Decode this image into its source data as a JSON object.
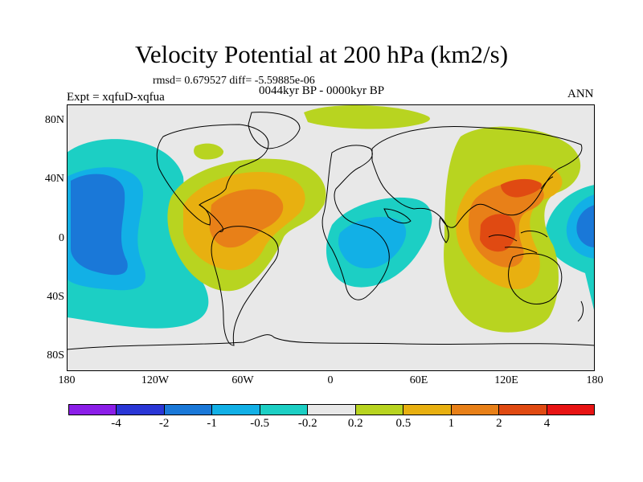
{
  "title": "Velocity Potential at 200 hPa (km2/s)",
  "stats": "rmsd= 0.679527 diff= -5.59885e-06",
  "experiment": "Expt = xqfuD-xqfua",
  "period": "0044kyr BP - 0000kyr BP",
  "season": "ANN",
  "axes": {
    "y_ticks": [
      "80N",
      "40N",
      "0",
      "40S",
      "80S"
    ],
    "x_ticks": [
      "180",
      "120W",
      "60W",
      "0",
      "60E",
      "120E",
      "180"
    ]
  },
  "colorbar": {
    "labels": [
      "-4",
      "-2",
      "-1",
      "-0.5",
      "-0.2",
      "0.2",
      "0.5",
      "1",
      "2",
      "4"
    ],
    "colors": [
      "#8b1ee8",
      "#2a36d6",
      "#1a78d8",
      "#12b0e6",
      "#1ccfc4",
      "#e8e8e8",
      "#b8d420",
      "#e8b010",
      "#e88018",
      "#e04a12",
      "#e81414"
    ]
  },
  "colors": {
    "background_zero": "#e8e8e8",
    "coast": "#000000"
  }
}
